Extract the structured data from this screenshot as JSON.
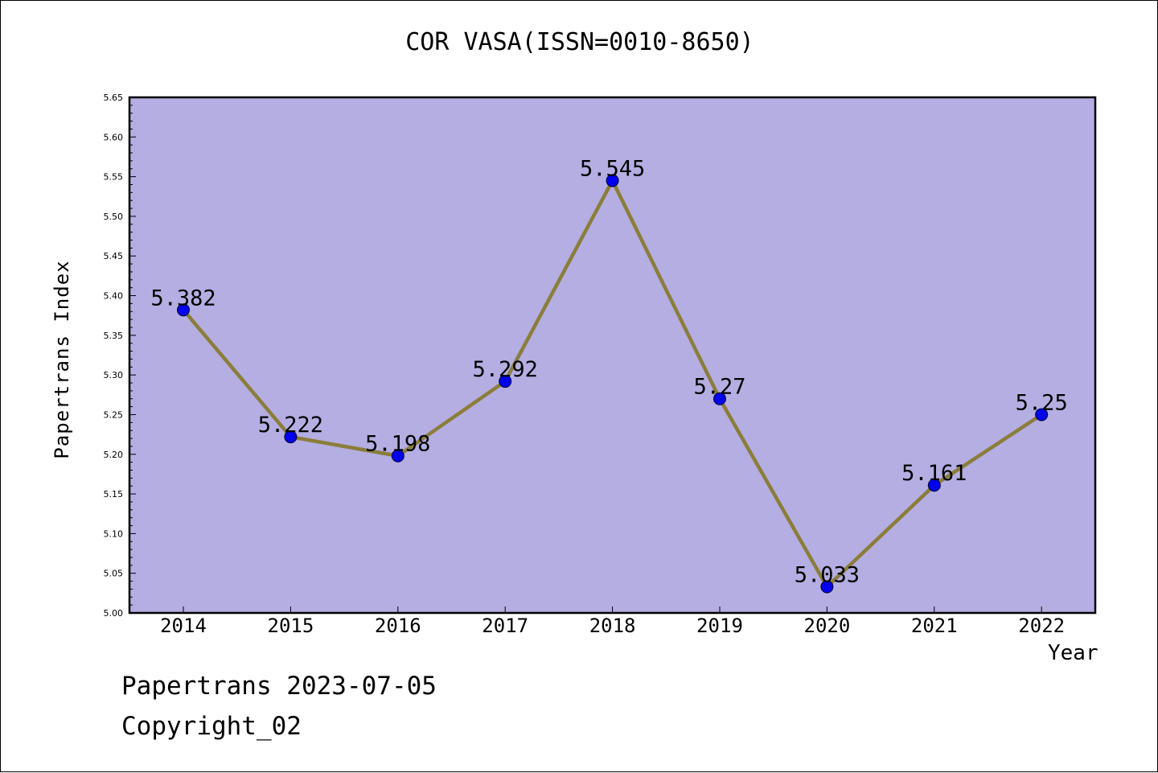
{
  "chart_data": {
    "type": "line",
    "title": "COR VASA(ISSN=0010-8650)",
    "xlabel": "Year",
    "ylabel": "Papertrans Index",
    "categories": [
      "2014",
      "2015",
      "2016",
      "2017",
      "2018",
      "2019",
      "2020",
      "2021",
      "2022"
    ],
    "values": [
      5.382,
      5.222,
      5.198,
      5.292,
      5.545,
      5.27,
      5.033,
      5.161,
      5.25
    ],
    "data_labels": [
      "5.382",
      "5.222",
      "5.198",
      "5.292",
      "5.545",
      "5.27",
      "5.033",
      "5.161",
      "5.25"
    ],
    "ylim": [
      5.0,
      5.65
    ],
    "y_ticks": [
      "5.00",
      "5.05",
      "5.10",
      "5.15",
      "5.20",
      "5.25",
      "5.30",
      "5.35",
      "5.40",
      "5.45",
      "5.50",
      "5.55",
      "5.60",
      "5.65"
    ],
    "grid": false,
    "colors": {
      "plot_background": "#b4aee2",
      "line": "#8b7d3a",
      "marker": "#0000ee"
    }
  },
  "footer": {
    "line1": "Papertrans 2023-07-05",
    "line2": "Copyright_02"
  }
}
